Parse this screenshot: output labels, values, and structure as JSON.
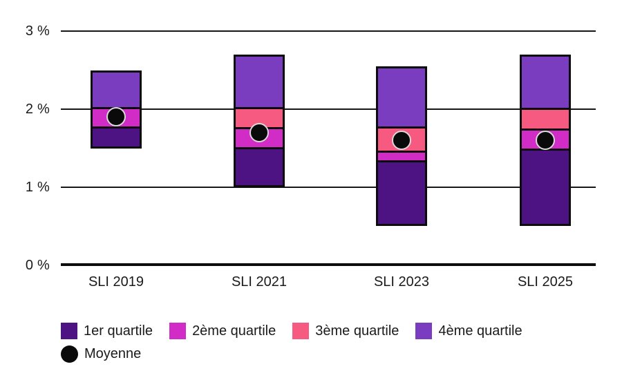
{
  "chart_data": {
    "type": "bar",
    "variant": "quartile-range-stacked",
    "title": "",
    "unit": "%",
    "categories": [
      "SLI 2019",
      "SLI 2021",
      "SLI 2023",
      "SLI 2025"
    ],
    "y_axis": {
      "ticks": [
        "3 %",
        "2 %",
        "1 %",
        "0 %"
      ],
      "tick_values": [
        3,
        2,
        1,
        0
      ],
      "min": 0,
      "max": 3,
      "unit": "%"
    },
    "grid": true,
    "legend_position": "bottom-left",
    "series": [
      {
        "name": "1er quartile",
        "color": "#4d1383",
        "ranges": [
          [
            1.5,
            1.75
          ],
          [
            1.0,
            1.5
          ],
          [
            0.5,
            1.35
          ],
          [
            0.5,
            1.5
          ]
        ]
      },
      {
        "name": "2ème quartile",
        "color": "#d12cc6",
        "ranges": [
          [
            1.75,
            2.0
          ],
          [
            1.5,
            1.75
          ],
          [
            1.35,
            1.45
          ],
          [
            1.5,
            1.75
          ]
        ]
      },
      {
        "name": "3ème quartile",
        "color": "#f65a80",
        "ranges": [
          [
            2.0,
            2.0
          ],
          [
            1.75,
            2.0
          ],
          [
            1.45,
            1.75
          ],
          [
            1.75,
            2.0
          ]
        ]
      },
      {
        "name": "4ème quartile",
        "color": "#7b3dbf",
        "ranges": [
          [
            2.0,
            2.5
          ],
          [
            2.0,
            2.7
          ],
          [
            1.75,
            2.55
          ],
          [
            2.0,
            2.7
          ]
        ]
      }
    ],
    "mean": {
      "name": "Moyenne",
      "color": "#0a0a0a",
      "ring_color": "#d9d9d9",
      "values": [
        1.9,
        1.7,
        1.6,
        1.6
      ]
    },
    "colors": {
      "background": "#ffffff",
      "axis": "#0c0c0c",
      "text": "#1a1a1a"
    }
  }
}
